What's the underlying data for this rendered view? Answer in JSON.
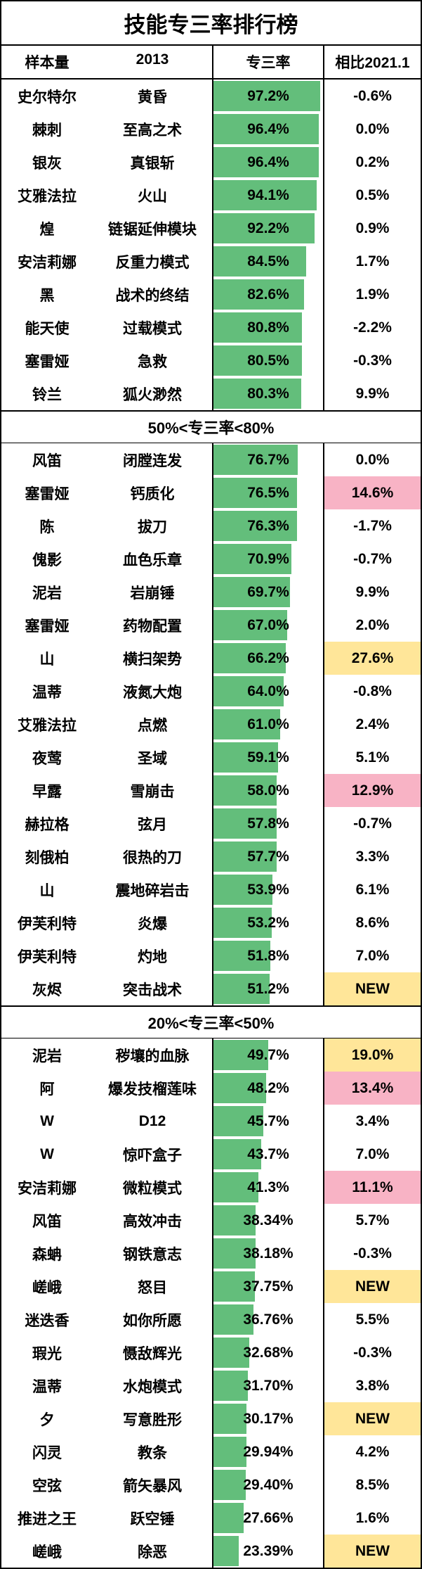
{
  "title": "技能专三率排行榜",
  "columns": {
    "sample": "样本量",
    "year": "2013",
    "rate": "专三率",
    "diff": "相比2021.1"
  },
  "colors": {
    "bar": "#63be7b",
    "border": "#000000",
    "hl_pink": "#f8b3c5",
    "hl_yellow": "#ffe699",
    "bg": "#ffffff"
  },
  "sections": [
    {
      "header": null,
      "rows": [
        {
          "op": "史尔特尔",
          "skill": "黄昏",
          "rate": 97.2,
          "rate_text": "97.2%",
          "diff": "-0.6%",
          "hl": null
        },
        {
          "op": "棘刺",
          "skill": "至高之术",
          "rate": 96.4,
          "rate_text": "96.4%",
          "diff": "0.0%",
          "hl": null
        },
        {
          "op": "银灰",
          "skill": "真银斩",
          "rate": 96.4,
          "rate_text": "96.4%",
          "diff": "0.2%",
          "hl": null
        },
        {
          "op": "艾雅法拉",
          "skill": "火山",
          "rate": 94.1,
          "rate_text": "94.1%",
          "diff": "0.5%",
          "hl": null
        },
        {
          "op": "煌",
          "skill": "链锯延伸模块",
          "rate": 92.2,
          "rate_text": "92.2%",
          "diff": "0.9%",
          "hl": null
        },
        {
          "op": "安洁莉娜",
          "skill": "反重力模式",
          "rate": 84.5,
          "rate_text": "84.5%",
          "diff": "1.7%",
          "hl": null
        },
        {
          "op": "黑",
          "skill": "战术的终结",
          "rate": 82.6,
          "rate_text": "82.6%",
          "diff": "1.9%",
          "hl": null
        },
        {
          "op": "能天使",
          "skill": "过载模式",
          "rate": 80.8,
          "rate_text": "80.8%",
          "diff": "-2.2%",
          "hl": null
        },
        {
          "op": "塞雷娅",
          "skill": "急救",
          "rate": 80.5,
          "rate_text": "80.5%",
          "diff": "-0.3%",
          "hl": null
        },
        {
          "op": "铃兰",
          "skill": "狐火渺然",
          "rate": 80.3,
          "rate_text": "80.3%",
          "diff": "9.9%",
          "hl": null
        }
      ]
    },
    {
      "header": "50%<专三率<80%",
      "rows": [
        {
          "op": "风笛",
          "skill": "闭膛连发",
          "rate": 76.7,
          "rate_text": "76.7%",
          "diff": "0.0%",
          "hl": null
        },
        {
          "op": "塞雷娅",
          "skill": "钙质化",
          "rate": 76.5,
          "rate_text": "76.5%",
          "diff": "14.6%",
          "hl": "pink"
        },
        {
          "op": "陈",
          "skill": "拔刀",
          "rate": 76.3,
          "rate_text": "76.3%",
          "diff": "-1.7%",
          "hl": null
        },
        {
          "op": "傀影",
          "skill": "血色乐章",
          "rate": 70.9,
          "rate_text": "70.9%",
          "diff": "-0.7%",
          "hl": null
        },
        {
          "op": "泥岩",
          "skill": "岩崩锤",
          "rate": 69.7,
          "rate_text": "69.7%",
          "diff": "9.9%",
          "hl": null
        },
        {
          "op": "塞雷娅",
          "skill": "药物配置",
          "rate": 67.0,
          "rate_text": "67.0%",
          "diff": "2.0%",
          "hl": null
        },
        {
          "op": "山",
          "skill": "横扫架势",
          "rate": 66.2,
          "rate_text": "66.2%",
          "diff": "27.6%",
          "hl": "yellow"
        },
        {
          "op": "温蒂",
          "skill": "液氮大炮",
          "rate": 64.0,
          "rate_text": "64.0%",
          "diff": "-0.8%",
          "hl": null
        },
        {
          "op": "艾雅法拉",
          "skill": "点燃",
          "rate": 61.0,
          "rate_text": "61.0%",
          "diff": "2.4%",
          "hl": null
        },
        {
          "op": "夜莺",
          "skill": "圣域",
          "rate": 59.1,
          "rate_text": "59.1%",
          "diff": "5.1%",
          "hl": null
        },
        {
          "op": "早露",
          "skill": "雪崩击",
          "rate": 58.0,
          "rate_text": "58.0%",
          "diff": "12.9%",
          "hl": "pink"
        },
        {
          "op": "赫拉格",
          "skill": "弦月",
          "rate": 57.8,
          "rate_text": "57.8%",
          "diff": "-0.7%",
          "hl": null
        },
        {
          "op": "刻俄柏",
          "skill": "很热的刀",
          "rate": 57.7,
          "rate_text": "57.7%",
          "diff": "3.3%",
          "hl": null
        },
        {
          "op": "山",
          "skill": "震地碎岩击",
          "rate": 53.9,
          "rate_text": "53.9%",
          "diff": "6.1%",
          "hl": null
        },
        {
          "op": "伊芙利特",
          "skill": "炎爆",
          "rate": 53.2,
          "rate_text": "53.2%",
          "diff": "8.6%",
          "hl": null
        },
        {
          "op": "伊芙利特",
          "skill": "灼地",
          "rate": 51.8,
          "rate_text": "51.8%",
          "diff": "7.0%",
          "hl": null
        },
        {
          "op": "灰烬",
          "skill": "突击战术",
          "rate": 51.2,
          "rate_text": "51.2%",
          "diff": "NEW",
          "hl": "yellow"
        }
      ]
    },
    {
      "header": "20%<专三率<50%",
      "rows": [
        {
          "op": "泥岩",
          "skill": "秽壤的血脉",
          "rate": 49.7,
          "rate_text": "49.7%",
          "diff": "19.0%",
          "hl": "yellow"
        },
        {
          "op": "阿",
          "skill": "爆发技榴莲味",
          "rate": 48.2,
          "rate_text": "48.2%",
          "diff": "13.4%",
          "hl": "pink"
        },
        {
          "op": "W",
          "skill": "D12",
          "rate": 45.7,
          "rate_text": "45.7%",
          "diff": "3.4%",
          "hl": null
        },
        {
          "op": "W",
          "skill": "惊吓盒子",
          "rate": 43.7,
          "rate_text": "43.7%",
          "diff": "7.0%",
          "hl": null
        },
        {
          "op": "安洁莉娜",
          "skill": "微粒模式",
          "rate": 41.3,
          "rate_text": "41.3%",
          "diff": "11.1%",
          "hl": "pink"
        },
        {
          "op": "风笛",
          "skill": "高效冲击",
          "rate": 38.34,
          "rate_text": "38.34%",
          "diff": "5.7%",
          "hl": null
        },
        {
          "op": "森蚺",
          "skill": "钢铁意志",
          "rate": 38.18,
          "rate_text": "38.18%",
          "diff": "-0.3%",
          "hl": null
        },
        {
          "op": "嵯峨",
          "skill": "怒目",
          "rate": 37.75,
          "rate_text": "37.75%",
          "diff": "NEW",
          "hl": "yellow"
        },
        {
          "op": "迷迭香",
          "skill": "如你所愿",
          "rate": 36.76,
          "rate_text": "36.76%",
          "diff": "5.5%",
          "hl": null
        },
        {
          "op": "瑕光",
          "skill": "慑敌辉光",
          "rate": 32.68,
          "rate_text": "32.68%",
          "diff": "-0.3%",
          "hl": null
        },
        {
          "op": "温蒂",
          "skill": "水炮模式",
          "rate": 31.7,
          "rate_text": "31.70%",
          "diff": "3.8%",
          "hl": null
        },
        {
          "op": "夕",
          "skill": "写意胜形",
          "rate": 30.17,
          "rate_text": "30.17%",
          "diff": "NEW",
          "hl": "yellow"
        },
        {
          "op": "闪灵",
          "skill": "教条",
          "rate": 29.94,
          "rate_text": "29.94%",
          "diff": "4.2%",
          "hl": null
        },
        {
          "op": "空弦",
          "skill": "箭矢暴风",
          "rate": 29.4,
          "rate_text": "29.40%",
          "diff": "8.5%",
          "hl": null
        },
        {
          "op": "推进之王",
          "skill": "跃空锤",
          "rate": 27.66,
          "rate_text": "27.66%",
          "diff": "1.6%",
          "hl": null
        },
        {
          "op": "嵯峨",
          "skill": "除恶",
          "rate": 23.39,
          "rate_text": "23.39%",
          "diff": "NEW",
          "hl": "yellow"
        }
      ]
    }
  ]
}
